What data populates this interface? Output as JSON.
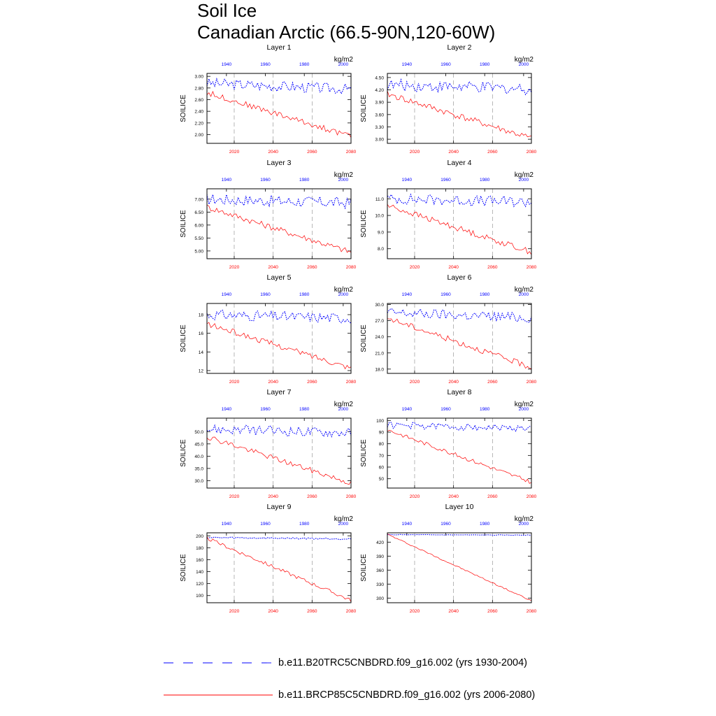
{
  "title": "Soil Ice",
  "subtitle": "Canadian Arctic (66.5-90N,120-60W)",
  "units": "kg/m2",
  "variable": "SOILICE",
  "colors": {
    "historical": "#0000ff",
    "future": "#ff0000",
    "refline": "#888888"
  },
  "legend": {
    "historical": "b.e11.B20TRC5CNBDRD.f09_g16.002 (yrs 1930-2004)",
    "future": "b.e11.BRCP85C5CNBDRD.f09_g16.002 (yrs 2006-2080)"
  },
  "axes": {
    "top_ticks": [
      "1940",
      "1960",
      "1980",
      "2000"
    ],
    "top_tick_values": [
      1940,
      1960,
      1980,
      2000
    ],
    "bottom_ticks": [
      "2020",
      "2040",
      "2060",
      "2080"
    ],
    "bottom_tick_values": [
      2020,
      2040,
      2060,
      2080
    ],
    "top_range": [
      1930,
      2004
    ],
    "bottom_range": [
      2006,
      2080
    ]
  },
  "chart_data": [
    {
      "type": "line",
      "title": "Layer 1",
      "ylabel": "SOILICE",
      "ylim": [
        1.85,
        3.05
      ],
      "yticks": [
        "3.00",
        "2.80",
        "2.60",
        "2.40",
        "2.20",
        "2.00"
      ],
      "ytick_values": [
        3.0,
        2.8,
        2.6,
        2.4,
        2.2,
        2.0
      ],
      "series": [
        {
          "name": "historical",
          "start": 2.88,
          "end": 2.78,
          "noise": 0.09
        },
        {
          "name": "future",
          "start": 2.72,
          "end": 1.97,
          "noise": 0.05
        }
      ]
    },
    {
      "type": "line",
      "title": "Layer 2",
      "ylabel": "SOILICE",
      "ylim": [
        2.9,
        4.6
      ],
      "yticks": [
        "4.50",
        "4.20",
        "3.90",
        "3.60",
        "3.30",
        "3.00"
      ],
      "ytick_values": [
        4.5,
        4.2,
        3.9,
        3.6,
        3.3,
        3.0
      ],
      "series": [
        {
          "name": "historical",
          "start": 4.32,
          "end": 4.22,
          "noise": 0.14
        },
        {
          "name": "future",
          "start": 4.1,
          "end": 3.02,
          "noise": 0.08
        }
      ]
    },
    {
      "type": "line",
      "title": "Layer 3",
      "ylabel": "SOILICE",
      "ylim": [
        4.7,
        7.4
      ],
      "yticks": [
        "7.00",
        "6.50",
        "6.00",
        "5.50",
        "5.00"
      ],
      "ytick_values": [
        7.0,
        6.5,
        6.0,
        5.5,
        5.0
      ],
      "series": [
        {
          "name": "historical",
          "start": 7.0,
          "end": 6.85,
          "noise": 0.22
        },
        {
          "name": "future",
          "start": 6.7,
          "end": 4.95,
          "noise": 0.12
        }
      ]
    },
    {
      "type": "line",
      "title": "Layer 4",
      "ylabel": "SOILICE",
      "ylim": [
        7.4,
        11.6
      ],
      "yticks": [
        "11.0",
        "10.0",
        "9.0",
        "8.0"
      ],
      "ytick_values": [
        11.0,
        10.0,
        9.0,
        8.0
      ],
      "series": [
        {
          "name": "historical",
          "start": 11.0,
          "end": 10.8,
          "noise": 0.32
        },
        {
          "name": "future",
          "start": 10.6,
          "end": 7.8,
          "noise": 0.18
        }
      ]
    },
    {
      "type": "line",
      "title": "Layer 5",
      "ylabel": "SOILICE",
      "ylim": [
        11.7,
        19.2
      ],
      "yticks": [
        "18",
        "16",
        "14",
        "12"
      ],
      "ytick_values": [
        18,
        16,
        14,
        12
      ],
      "series": [
        {
          "name": "historical",
          "start": 18.0,
          "end": 17.6,
          "noise": 0.55
        },
        {
          "name": "future",
          "start": 17.0,
          "end": 12.3,
          "noise": 0.3
        }
      ]
    },
    {
      "type": "line",
      "title": "Layer 6",
      "ylabel": "SOILICE",
      "ylim": [
        17.2,
        30.2
      ],
      "yticks": [
        "30.0",
        "27.0",
        "24.0",
        "21.0",
        "18.0"
      ],
      "ytick_values": [
        30.0,
        27.0,
        24.0,
        21.0,
        18.0
      ],
      "series": [
        {
          "name": "historical",
          "start": 28.5,
          "end": 27.5,
          "noise": 0.95
        },
        {
          "name": "future",
          "start": 27.5,
          "end": 18.3,
          "noise": 0.55
        }
      ]
    },
    {
      "type": "line",
      "title": "Layer 7",
      "ylabel": "SOILICE",
      "ylim": [
        27.0,
        55.5
      ],
      "yticks": [
        "50.0",
        "45.0",
        "40.0",
        "35.0",
        "30.0"
      ],
      "ytick_values": [
        50.0,
        45.0,
        40.0,
        35.0,
        30.0
      ],
      "series": [
        {
          "name": "historical",
          "start": 51.0,
          "end": 49.5,
          "noise": 2.0
        },
        {
          "name": "future",
          "start": 48.0,
          "end": 29.0,
          "noise": 1.1
        }
      ]
    },
    {
      "type": "line",
      "title": "Layer 8",
      "ylabel": "SOILICE",
      "ylim": [
        42,
        102
      ],
      "yticks": [
        "100",
        "90",
        "80",
        "70",
        "60",
        "50"
      ],
      "ytick_values": [
        100,
        90,
        80,
        70,
        60,
        50
      ],
      "series": [
        {
          "name": "historical",
          "start": 96,
          "end": 93,
          "noise": 2.8
        },
        {
          "name": "future",
          "start": 92,
          "end": 47,
          "noise": 1.7
        }
      ]
    },
    {
      "type": "line",
      "title": "Layer 9",
      "ylabel": "SOILICE",
      "ylim": [
        88,
        205
      ],
      "yticks": [
        "200",
        "180",
        "160",
        "140",
        "120",
        "100"
      ],
      "ytick_values": [
        200,
        180,
        160,
        140,
        120,
        100
      ],
      "series": [
        {
          "name": "historical",
          "start": 197,
          "end": 195,
          "noise": 1.4
        },
        {
          "name": "future",
          "start": 196,
          "end": 92,
          "noise": 3.0
        }
      ]
    },
    {
      "type": "line",
      "title": "Layer 10",
      "ylabel": "SOILICE",
      "ylim": [
        290,
        440
      ],
      "yticks": [
        "420",
        "390",
        "360",
        "330",
        "300"
      ],
      "ytick_values": [
        420,
        390,
        360,
        330,
        300
      ],
      "series": [
        {
          "name": "historical",
          "start": 436,
          "end": 435,
          "noise": 0.6
        },
        {
          "name": "future",
          "start": 437,
          "end": 294,
          "noise": 1.5
        }
      ]
    }
  ]
}
